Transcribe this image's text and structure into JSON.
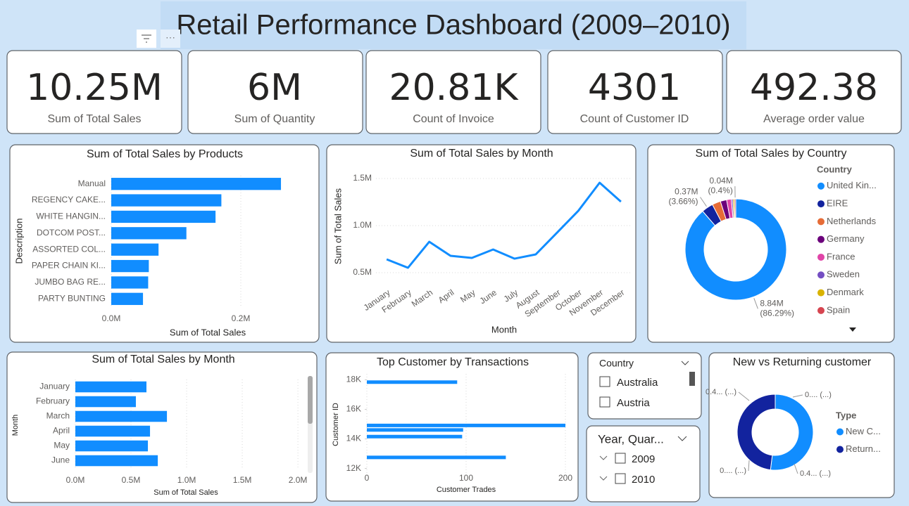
{
  "title": "Retail Performance Dashboard (2009–2010)",
  "kpis": [
    {
      "value": "10.25M",
      "label": "Sum of Total Sales"
    },
    {
      "value": "6M",
      "label": "Sum of Quantity"
    },
    {
      "value": "20.81K",
      "label": "Count of Invoice"
    },
    {
      "value": "4301",
      "label": "Count of Customer ID"
    },
    {
      "value": "492.38",
      "label": "Average order value"
    }
  ],
  "chart_data": [
    {
      "type": "hbar",
      "title": "Sum of Total Sales by Products",
      "x_label": "Sum of Total Sales",
      "y_label": "Description",
      "categories": [
        "Manual",
        "REGENCY CAKE...",
        "WHITE HANGIN...",
        "DOTCOM POST...",
        "ASSORTED COL...",
        "PAPER CHAIN KI...",
        "JUMBO BAG RE...",
        "PARTY BUNTING"
      ],
      "values": [
        262000,
        170000,
        161000,
        116000,
        73000,
        58000,
        57000,
        49000
      ],
      "color": "#118dff",
      "xlim": [
        0,
        300000
      ],
      "xticks": [
        {
          "value": 0,
          "label": "0.0M"
        },
        {
          "value": 200000,
          "label": "0.2M"
        }
      ],
      "grid": true
    },
    {
      "type": "line",
      "title": "Sum of Total Sales by Month",
      "x_label": "Month",
      "y_label": "Sum of Total Sales",
      "categories": [
        "January",
        "February",
        "March",
        "April",
        "May",
        "June",
        "July",
        "August",
        "September",
        "October",
        "November",
        "December"
      ],
      "values": [
        642000,
        552000,
        828000,
        679000,
        657000,
        746000,
        649000,
        694000,
        925000,
        1157000,
        1455000,
        1254000
      ],
      "color": "#118dff",
      "ylim": [
        400000,
        1600000
      ],
      "yticks": [
        {
          "value": 500000,
          "label": "0.5M"
        },
        {
          "value": 1000000,
          "label": "1.0M"
        },
        {
          "value": 1500000,
          "label": "1.5M"
        }
      ],
      "grid": true
    },
    {
      "type": "donut",
      "title": "Sum of Total Sales by Country",
      "legend_title": "Country",
      "legend": "right",
      "categories": [
        "United Kin...",
        "EIRE",
        "Netherlands",
        "Germany",
        "France",
        "Sweden",
        "Denmark",
        "Spain"
      ],
      "values": [
        8840000,
        370000,
        270000,
        200000,
        150000,
        50000,
        50000,
        40000
      ],
      "value_labels": [
        "8.84M",
        "0.37M",
        null,
        null,
        null,
        null,
        null,
        "0.04M"
      ],
      "percent_labels": [
        "(86.29%)",
        "(3.66%)",
        null,
        null,
        null,
        null,
        null,
        "(0.4%)"
      ],
      "colors": [
        "#118dff",
        "#12239e",
        "#e66c37",
        "#6b007b",
        "#e044a7",
        "#744ec2",
        "#d9b300",
        "#d64550"
      ]
    },
    {
      "type": "hbar",
      "title": "Sum of Total Sales by Month",
      "x_label": "Sum of Total Sales",
      "y_label": "Month",
      "categories": [
        "January",
        "February",
        "March",
        "April",
        "May",
        "June"
      ],
      "values": [
        639000,
        544000,
        823000,
        671000,
        652000,
        741000
      ],
      "color": "#118dff",
      "xlim": [
        0,
        2050000
      ],
      "xticks": [
        {
          "value": 0,
          "label": "0.0M"
        },
        {
          "value": 500000,
          "label": "0.5M"
        },
        {
          "value": 1000000,
          "label": "1.0M"
        },
        {
          "value": 1500000,
          "label": "1.5M"
        },
        {
          "value": 2000000,
          "label": "2.0M"
        }
      ],
      "grid": true
    },
    {
      "type": "hbar_numeric",
      "title": "Top Customer by Transactions",
      "x_label": "Customer Trades",
      "y_label": "Customer ID",
      "y": [
        17841,
        14911,
        14606,
        14156,
        12748
      ],
      "values": [
        91,
        200,
        97,
        96,
        140
      ],
      "color": "#118dff",
      "xlim": [
        0,
        200
      ],
      "xticks": [
        0,
        100,
        200
      ],
      "ylim": [
        11600,
        18400
      ],
      "yticks": [
        {
          "value": 12000,
          "label": "12K"
        },
        {
          "value": 14000,
          "label": "14K"
        },
        {
          "value": 16000,
          "label": "16K"
        },
        {
          "value": 18000,
          "label": "18K"
        }
      ],
      "grid": true
    },
    {
      "type": "donut",
      "title": "New vs Returning customer",
      "legend_title": "Type",
      "legend": "right",
      "categories": [
        "New C...",
        "Return..."
      ],
      "values": [
        0.52,
        0.48
      ],
      "colors": [
        "#118dff",
        "#12239e"
      ],
      "annotations": [
        "0.... (...)",
        "0.4... (...)",
        "0.... (...)",
        "0.4... (...)"
      ]
    }
  ],
  "slicers": [
    {
      "title": "Country",
      "items": [
        "Australia",
        "Austria"
      ]
    },
    {
      "title": "Year, Quar...",
      "items": [
        "2009",
        "2010"
      ]
    }
  ]
}
